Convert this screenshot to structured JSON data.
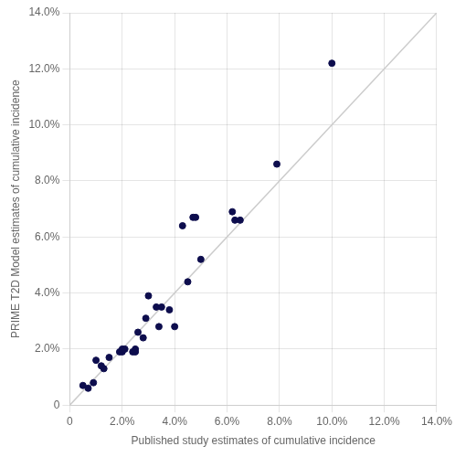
{
  "chart_data": {
    "type": "scatter",
    "x": [
      0.005,
      0.007,
      0.009,
      0.01,
      0.012,
      0.013,
      0.015,
      0.019,
      0.02,
      0.02,
      0.021,
      0.024,
      0.025,
      0.025,
      0.026,
      0.028,
      0.029,
      0.03,
      0.033,
      0.034,
      0.035,
      0.038,
      0.04,
      0.043,
      0.045,
      0.047,
      0.048,
      0.05,
      0.062,
      0.063,
      0.065,
      0.079,
      0.1
    ],
    "values": [
      0.007,
      0.006,
      0.008,
      0.016,
      0.014,
      0.013,
      0.017,
      0.019,
      0.019,
      0.02,
      0.02,
      0.019,
      0.019,
      0.02,
      0.026,
      0.024,
      0.031,
      0.039,
      0.035,
      0.028,
      0.035,
      0.034,
      0.028,
      0.064,
      0.044,
      0.067,
      0.067,
      0.052,
      0.069,
      0.066,
      0.066,
      0.086,
      0.122
    ],
    "color": "#0d0d4d",
    "lines": [
      {
        "x": [
          0,
          0.14
        ],
        "values": [
          0,
          0.14
        ],
        "color": "#cccccc"
      }
    ],
    "xlabel": "Published study estimates of cumulative incidence",
    "ylabel": "PRIME T2D Model estimates of cumulative incidence",
    "xlim": [
      0,
      0.14
    ],
    "ylim": [
      0,
      0.14
    ],
    "xticks": [
      0,
      {
        "value": 0.02,
        "label": "2.0%"
      },
      {
        "value": 0.04,
        "label": "4.0%"
      },
      {
        "value": 0.06,
        "label": "6.0%"
      },
      {
        "value": 0.08,
        "label": "8.0%"
      },
      {
        "value": 0.1,
        "label": "10.0%"
      },
      {
        "value": 0.12,
        "label": "12.0%"
      },
      {
        "value": 0.14,
        "label": "14.0%"
      }
    ],
    "yticks": [
      0,
      {
        "value": 0.02,
        "label": "2.0%"
      },
      {
        "value": 0.04,
        "label": "4.0%"
      },
      {
        "value": 0.06,
        "label": "6.0%"
      },
      {
        "value": 0.08,
        "label": "8.0%"
      },
      {
        "value": 0.1,
        "label": "10.0%"
      },
      {
        "value": 0.12,
        "label": "12.0%"
      },
      {
        "value": 0.14,
        "label": "14.0%"
      }
    ],
    "grid": true
  }
}
